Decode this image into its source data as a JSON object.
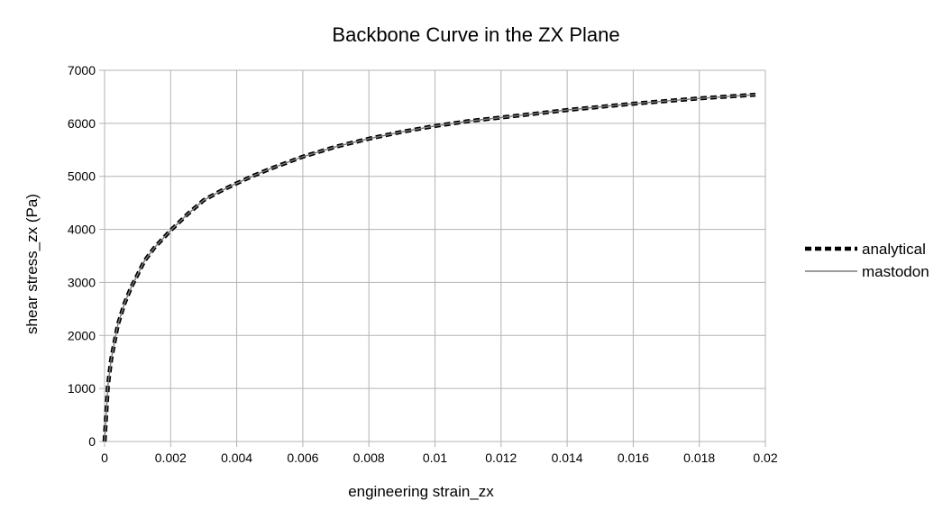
{
  "chart_data": {
    "type": "line",
    "title": "Backbone Curve in the ZX Plane",
    "xlabel": "engineering strain_zx",
    "ylabel": "shear stress_zx (Pa)",
    "xlim": [
      0,
      0.02
    ],
    "ylim": [
      0,
      7000
    ],
    "x_ticks": [
      "0",
      "0.002",
      "0.004",
      "0.006",
      "0.008",
      "0.01",
      "0.012",
      "0.014",
      "0.016",
      "0.018",
      "0.02"
    ],
    "y_ticks": [
      "0",
      "1000",
      "2000",
      "3000",
      "4000",
      "5000",
      "6000",
      "7000"
    ],
    "grid": true,
    "legend_position": "right",
    "x": [
      0,
      0.0001,
      0.0002,
      0.0004,
      0.0006,
      0.0008,
      0.001,
      0.0012,
      0.0015,
      0.002,
      0.0025,
      0.003,
      0.0035,
      0.004,
      0.0045,
      0.005,
      0.006,
      0.007,
      0.008,
      0.009,
      0.01,
      0.011,
      0.012,
      0.013,
      0.014,
      0.015,
      0.016,
      0.017,
      0.018,
      0.019,
      0.0197
    ],
    "series": [
      {
        "name": "analytical",
        "color": "#000000",
        "style": "dashed",
        "values": [
          0,
          1050,
          1550,
          2200,
          2600,
          2900,
          3150,
          3400,
          3650,
          3980,
          4280,
          4550,
          4720,
          4870,
          5010,
          5140,
          5370,
          5560,
          5710,
          5840,
          5950,
          6040,
          6110,
          6180,
          6250,
          6310,
          6370,
          6420,
          6470,
          6510,
          6540
        ]
      },
      {
        "name": "mastodon",
        "color": "#7a7a7a",
        "style": "solid",
        "values": [
          0,
          1050,
          1550,
          2200,
          2600,
          2900,
          3150,
          3400,
          3650,
          3980,
          4280,
          4550,
          4720,
          4870,
          5010,
          5140,
          5370,
          5560,
          5710,
          5840,
          5950,
          6040,
          6110,
          6180,
          6250,
          6310,
          6370,
          6420,
          6470,
          6510,
          6540
        ]
      }
    ]
  }
}
